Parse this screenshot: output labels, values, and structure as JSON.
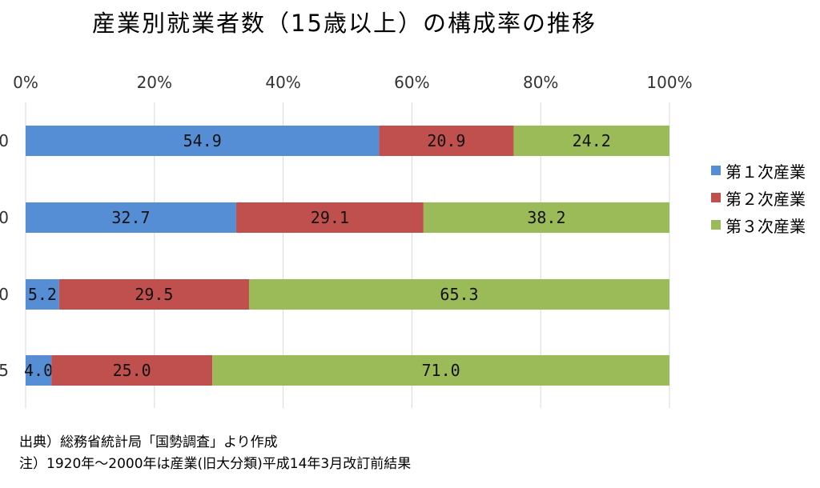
{
  "chart_data": {
    "type": "bar",
    "orientation": "horizontal",
    "stacked": "percent",
    "title": "産業別就業者数（15歳以上）の構成率の推移",
    "categories": [
      "0",
      "0",
      "0",
      "5"
    ],
    "series": [
      {
        "name": "第１次産業",
        "values": [
          54.9,
          32.7,
          5.2,
          4.0
        ],
        "labels": [
          "54.9",
          "32.7",
          "5.2",
          "4.0"
        ],
        "color": "#558ed5"
      },
      {
        "name": "第２次産業",
        "values": [
          20.9,
          29.1,
          29.5,
          25.0
        ],
        "labels": [
          "20.9",
          "29.1",
          "29.5",
          "25.0"
        ],
        "color": "#c0504d"
      },
      {
        "name": "第３次産業",
        "values": [
          24.2,
          38.2,
          65.3,
          71.0
        ],
        "labels": [
          "24.2",
          "38.2",
          "65.3",
          "71.0"
        ],
        "color": "#9bbb59"
      }
    ],
    "x_ticks": [
      "0%",
      "20%",
      "40%",
      "60%",
      "80%",
      "100%"
    ],
    "xlim": [
      0,
      100
    ],
    "x_axis_position": "top",
    "grid": true,
    "legend_position": "right"
  },
  "notes": [
    "出典）総務省統計局「国勢調査」より作成",
    "注）1920年～2000年は産業(旧大分類)平成14年3月改訂前結果"
  ]
}
